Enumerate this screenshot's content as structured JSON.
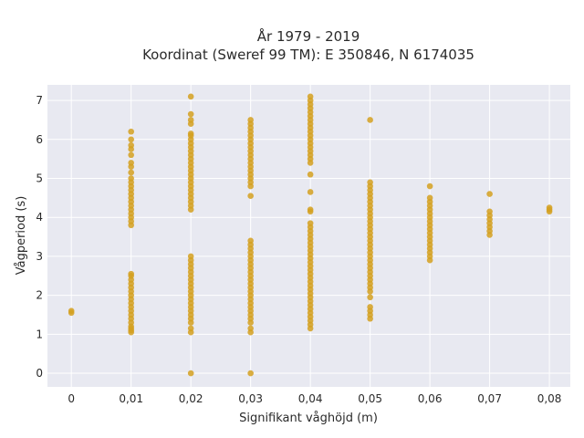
{
  "chart_data": {
    "type": "scatter",
    "title": "År 1979 - 2019",
    "subtitle": "Koordinat (Sweref 99 TM): E 350846, N 6174035",
    "xlabel": "Signifikant våghöjd (m)",
    "ylabel": "Vågperiod (s)",
    "xlim": [
      -0.004,
      0.0835
    ],
    "ylim": [
      -0.35,
      7.4
    ],
    "x_ticks": [
      0,
      0.01,
      0.02,
      0.03,
      0.04,
      0.05,
      0.06,
      0.07,
      0.08
    ],
    "x_tick_labels": [
      "0",
      "0,01",
      "0,02",
      "0,03",
      "0,04",
      "0,05",
      "0,06",
      "0,07",
      "0,08"
    ],
    "y_ticks": [
      0,
      1,
      2,
      3,
      4,
      5,
      6,
      7
    ],
    "y_tick_labels": [
      "0",
      "1",
      "2",
      "3",
      "4",
      "5",
      "6",
      "7"
    ],
    "grid": true,
    "marker_color": "#d4a020",
    "plot_background": "#e8e9f1",
    "series": [
      {
        "points": [
          [
            0,
            1.55
          ],
          [
            0,
            1.6
          ],
          [
            0.01,
            1.05
          ],
          [
            0.01,
            1.1
          ],
          [
            0.01,
            1.15
          ],
          [
            0.01,
            1.2
          ],
          [
            0.01,
            1.3
          ],
          [
            0.01,
            1.4
          ],
          [
            0.01,
            1.5
          ],
          [
            0.01,
            1.6
          ],
          [
            0.01,
            1.7
          ],
          [
            0.01,
            1.8
          ],
          [
            0.01,
            1.9
          ],
          [
            0.01,
            2.0
          ],
          [
            0.01,
            2.1
          ],
          [
            0.01,
            2.2
          ],
          [
            0.01,
            2.3
          ],
          [
            0.01,
            2.4
          ],
          [
            0.01,
            2.5
          ],
          [
            0.01,
            2.55
          ],
          [
            0.01,
            3.8
          ],
          [
            0.01,
            3.9
          ],
          [
            0.01,
            4.0
          ],
          [
            0.01,
            4.1
          ],
          [
            0.01,
            4.2
          ],
          [
            0.01,
            4.3
          ],
          [
            0.01,
            4.4
          ],
          [
            0.01,
            4.5
          ],
          [
            0.01,
            4.6
          ],
          [
            0.01,
            4.7
          ],
          [
            0.01,
            4.8
          ],
          [
            0.01,
            4.9
          ],
          [
            0.01,
            5.0
          ],
          [
            0.01,
            5.15
          ],
          [
            0.01,
            5.3
          ],
          [
            0.01,
            5.4
          ],
          [
            0.01,
            5.6
          ],
          [
            0.01,
            5.75
          ],
          [
            0.01,
            5.85
          ],
          [
            0.01,
            6.0
          ],
          [
            0.01,
            6.2
          ],
          [
            0.02,
            0.0
          ],
          [
            0.02,
            1.05
          ],
          [
            0.02,
            1.15
          ],
          [
            0.02,
            1.3
          ],
          [
            0.02,
            1.4
          ],
          [
            0.02,
            1.5
          ],
          [
            0.02,
            1.6
          ],
          [
            0.02,
            1.7
          ],
          [
            0.02,
            1.8
          ],
          [
            0.02,
            1.9
          ],
          [
            0.02,
            2.0
          ],
          [
            0.02,
            2.1
          ],
          [
            0.02,
            2.2
          ],
          [
            0.02,
            2.3
          ],
          [
            0.02,
            2.4
          ],
          [
            0.02,
            2.5
          ],
          [
            0.02,
            2.6
          ],
          [
            0.02,
            2.7
          ],
          [
            0.02,
            2.8
          ],
          [
            0.02,
            2.9
          ],
          [
            0.02,
            3.0
          ],
          [
            0.02,
            4.2
          ],
          [
            0.02,
            4.3
          ],
          [
            0.02,
            4.4
          ],
          [
            0.02,
            4.5
          ],
          [
            0.02,
            4.6
          ],
          [
            0.02,
            4.7
          ],
          [
            0.02,
            4.8
          ],
          [
            0.02,
            4.9
          ],
          [
            0.02,
            5.0
          ],
          [
            0.02,
            5.1
          ],
          [
            0.02,
            5.2
          ],
          [
            0.02,
            5.3
          ],
          [
            0.02,
            5.4
          ],
          [
            0.02,
            5.5
          ],
          [
            0.02,
            5.6
          ],
          [
            0.02,
            5.7
          ],
          [
            0.02,
            5.8
          ],
          [
            0.02,
            5.9
          ],
          [
            0.02,
            6.0
          ],
          [
            0.02,
            6.1
          ],
          [
            0.02,
            6.15
          ],
          [
            0.02,
            6.4
          ],
          [
            0.02,
            6.5
          ],
          [
            0.02,
            6.65
          ],
          [
            0.02,
            7.1
          ],
          [
            0.03,
            0.0
          ],
          [
            0.03,
            1.05
          ],
          [
            0.03,
            1.15
          ],
          [
            0.03,
            1.3
          ],
          [
            0.03,
            1.4
          ],
          [
            0.03,
            1.5
          ],
          [
            0.03,
            1.6
          ],
          [
            0.03,
            1.7
          ],
          [
            0.03,
            1.8
          ],
          [
            0.03,
            1.9
          ],
          [
            0.03,
            2.0
          ],
          [
            0.03,
            2.1
          ],
          [
            0.03,
            2.2
          ],
          [
            0.03,
            2.3
          ],
          [
            0.03,
            2.4
          ],
          [
            0.03,
            2.5
          ],
          [
            0.03,
            2.6
          ],
          [
            0.03,
            2.7
          ],
          [
            0.03,
            2.8
          ],
          [
            0.03,
            2.9
          ],
          [
            0.03,
            3.0
          ],
          [
            0.03,
            3.1
          ],
          [
            0.03,
            3.2
          ],
          [
            0.03,
            3.3
          ],
          [
            0.03,
            3.4
          ],
          [
            0.03,
            4.55
          ],
          [
            0.03,
            4.8
          ],
          [
            0.03,
            4.9
          ],
          [
            0.03,
            5.0
          ],
          [
            0.03,
            5.1
          ],
          [
            0.03,
            5.2
          ],
          [
            0.03,
            5.3
          ],
          [
            0.03,
            5.4
          ],
          [
            0.03,
            5.5
          ],
          [
            0.03,
            5.6
          ],
          [
            0.03,
            5.7
          ],
          [
            0.03,
            5.8
          ],
          [
            0.03,
            5.9
          ],
          [
            0.03,
            6.0
          ],
          [
            0.03,
            6.1
          ],
          [
            0.03,
            6.2
          ],
          [
            0.03,
            6.3
          ],
          [
            0.03,
            6.4
          ],
          [
            0.03,
            6.5
          ],
          [
            0.04,
            1.15
          ],
          [
            0.04,
            1.25
          ],
          [
            0.04,
            1.35
          ],
          [
            0.04,
            1.45
          ],
          [
            0.04,
            1.55
          ],
          [
            0.04,
            1.65
          ],
          [
            0.04,
            1.75
          ],
          [
            0.04,
            1.85
          ],
          [
            0.04,
            1.95
          ],
          [
            0.04,
            2.05
          ],
          [
            0.04,
            2.15
          ],
          [
            0.04,
            2.25
          ],
          [
            0.04,
            2.35
          ],
          [
            0.04,
            2.45
          ],
          [
            0.04,
            2.55
          ],
          [
            0.04,
            2.65
          ],
          [
            0.04,
            2.75
          ],
          [
            0.04,
            2.85
          ],
          [
            0.04,
            2.95
          ],
          [
            0.04,
            3.05
          ],
          [
            0.04,
            3.15
          ],
          [
            0.04,
            3.25
          ],
          [
            0.04,
            3.35
          ],
          [
            0.04,
            3.45
          ],
          [
            0.04,
            3.55
          ],
          [
            0.04,
            3.65
          ],
          [
            0.04,
            3.75
          ],
          [
            0.04,
            3.85
          ],
          [
            0.04,
            4.15
          ],
          [
            0.04,
            4.2
          ],
          [
            0.04,
            4.65
          ],
          [
            0.04,
            5.1
          ],
          [
            0.04,
            5.4
          ],
          [
            0.04,
            5.5
          ],
          [
            0.04,
            5.6
          ],
          [
            0.04,
            5.7
          ],
          [
            0.04,
            5.8
          ],
          [
            0.04,
            5.9
          ],
          [
            0.04,
            6.0
          ],
          [
            0.04,
            6.1
          ],
          [
            0.04,
            6.2
          ],
          [
            0.04,
            6.3
          ],
          [
            0.04,
            6.4
          ],
          [
            0.04,
            6.5
          ],
          [
            0.04,
            6.6
          ],
          [
            0.04,
            6.7
          ],
          [
            0.04,
            6.8
          ],
          [
            0.04,
            6.9
          ],
          [
            0.04,
            7.0
          ],
          [
            0.04,
            7.1
          ],
          [
            0.05,
            1.4
          ],
          [
            0.05,
            1.5
          ],
          [
            0.05,
            1.6
          ],
          [
            0.05,
            1.7
          ],
          [
            0.05,
            1.95
          ],
          [
            0.05,
            2.1
          ],
          [
            0.05,
            2.2
          ],
          [
            0.05,
            2.3
          ],
          [
            0.05,
            2.4
          ],
          [
            0.05,
            2.5
          ],
          [
            0.05,
            2.6
          ],
          [
            0.05,
            2.7
          ],
          [
            0.05,
            2.8
          ],
          [
            0.05,
            2.9
          ],
          [
            0.05,
            3.0
          ],
          [
            0.05,
            3.1
          ],
          [
            0.05,
            3.2
          ],
          [
            0.05,
            3.3
          ],
          [
            0.05,
            3.4
          ],
          [
            0.05,
            3.5
          ],
          [
            0.05,
            3.6
          ],
          [
            0.05,
            3.7
          ],
          [
            0.05,
            3.8
          ],
          [
            0.05,
            3.9
          ],
          [
            0.05,
            4.0
          ],
          [
            0.05,
            4.1
          ],
          [
            0.05,
            4.2
          ],
          [
            0.05,
            4.3
          ],
          [
            0.05,
            4.4
          ],
          [
            0.05,
            4.5
          ],
          [
            0.05,
            4.6
          ],
          [
            0.05,
            4.7
          ],
          [
            0.05,
            4.8
          ],
          [
            0.05,
            4.9
          ],
          [
            0.05,
            6.5
          ],
          [
            0.06,
            2.9
          ],
          [
            0.06,
            3.0
          ],
          [
            0.06,
            3.1
          ],
          [
            0.06,
            3.2
          ],
          [
            0.06,
            3.3
          ],
          [
            0.06,
            3.4
          ],
          [
            0.06,
            3.5
          ],
          [
            0.06,
            3.6
          ],
          [
            0.06,
            3.7
          ],
          [
            0.06,
            3.8
          ],
          [
            0.06,
            3.9
          ],
          [
            0.06,
            4.0
          ],
          [
            0.06,
            4.1
          ],
          [
            0.06,
            4.2
          ],
          [
            0.06,
            4.3
          ],
          [
            0.06,
            4.4
          ],
          [
            0.06,
            4.5
          ],
          [
            0.06,
            4.8
          ],
          [
            0.07,
            3.55
          ],
          [
            0.07,
            3.65
          ],
          [
            0.07,
            3.75
          ],
          [
            0.07,
            3.85
          ],
          [
            0.07,
            3.95
          ],
          [
            0.07,
            4.05
          ],
          [
            0.07,
            4.15
          ],
          [
            0.07,
            4.6
          ],
          [
            0.08,
            4.15
          ],
          [
            0.08,
            4.2
          ],
          [
            0.08,
            4.25
          ]
        ]
      }
    ]
  }
}
